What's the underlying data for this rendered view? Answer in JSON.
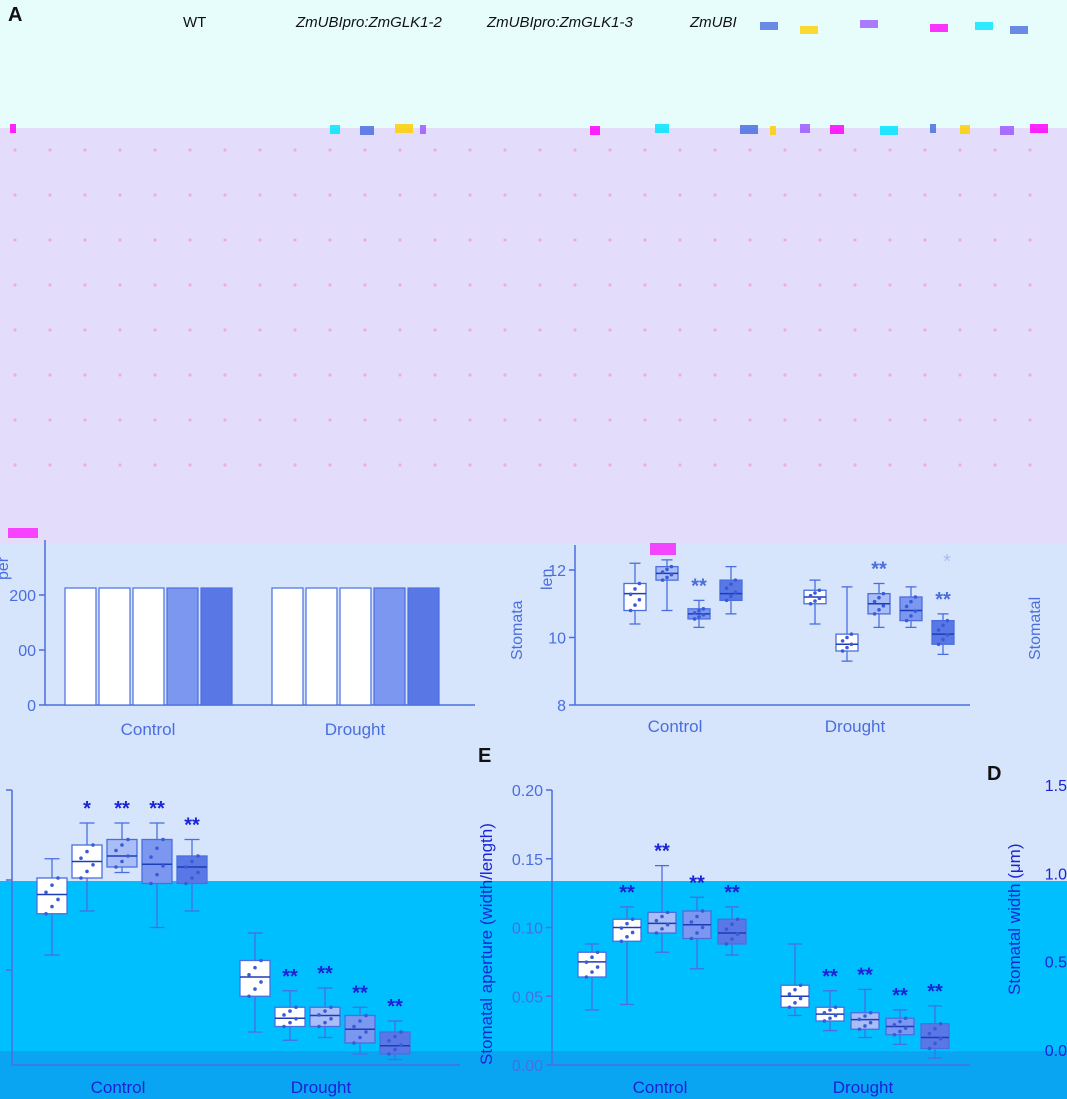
{
  "figure": {
    "panel_letters": {
      "a": "A",
      "e": "E",
      "d": "D"
    },
    "header_labels": [
      "WT",
      "ZmUBIpro:ZmGLK1-2",
      "ZmUBIpro:ZmGLK1-3",
      "ZmUBI"
    ],
    "palette": {
      "outline": "#4a6ee0",
      "fill_light": "#a9bdf7",
      "fill_mid": "#7b97ef",
      "fill_dark": "#5a77e6",
      "magenta": "#ff00ff",
      "sky": "#00bfff",
      "star": "#1a24d6"
    }
  },
  "chart_data": [
    {
      "type": "bar",
      "panel": "top-left",
      "categories": [
        "Control",
        "Drought"
      ],
      "series_count": 5,
      "yticks": [
        "0",
        "00",
        "200"
      ],
      "partial_ylabel": "per"
    },
    {
      "type": "box",
      "panel": "top-middle",
      "categories": [
        "Control",
        "Drought"
      ],
      "ylabel": "Stomata",
      "partial_ylabel": "len",
      "ylim": [
        8,
        12
      ],
      "yticks": [
        "8",
        "10",
        "12"
      ],
      "groups": [
        {
          "category": "Control",
          "boxes": [
            {
              "q1": 10.8,
              "median": 11.3,
              "q3": 11.6,
              "min": 10.4,
              "max": 12.2,
              "star": ""
            },
            {
              "q1": 11.7,
              "median": 11.9,
              "q3": 12.1,
              "min": 10.8,
              "max": 12.3,
              "star": ""
            },
            {
              "q1": 10.55,
              "median": 10.7,
              "q3": 10.85,
              "min": 10.3,
              "max": 11.1,
              "star": "**"
            },
            {
              "q1": 11.1,
              "median": 11.3,
              "q3": 11.7,
              "min": 10.7,
              "max": 12.1,
              "star": ""
            }
          ]
        },
        {
          "category": "Drought",
          "boxes": [
            {
              "q1": 11.0,
              "median": 11.2,
              "q3": 11.4,
              "min": 10.4,
              "max": 11.7,
              "star": ""
            },
            {
              "q1": 9.6,
              "median": 9.8,
              "q3": 10.1,
              "min": 9.3,
              "max": 11.5,
              "star": ""
            },
            {
              "q1": 10.7,
              "median": 11.0,
              "q3": 11.3,
              "min": 10.3,
              "max": 11.6,
              "star": "**"
            },
            {
              "q1": 10.5,
              "median": 10.8,
              "q3": 11.2,
              "min": 10.3,
              "max": 11.5,
              "star": ""
            },
            {
              "q1": 9.8,
              "median": 10.1,
              "q3": 10.5,
              "min": 9.5,
              "max": 10.7,
              "star": "**"
            }
          ]
        }
      ],
      "extra_star": "*"
    },
    {
      "type": "box",
      "panel": "bottom-left",
      "categories": [
        "Control",
        "Drought"
      ],
      "yticks": [],
      "groups": [
        {
          "category": "Control",
          "boxes": [
            {
              "q1": 0.55,
              "median": 0.62,
              "q3": 0.68,
              "min": 0.4,
              "max": 0.75,
              "star": ""
            },
            {
              "q1": 0.68,
              "median": 0.74,
              "q3": 0.8,
              "min": 0.56,
              "max": 0.88,
              "star": "*"
            },
            {
              "q1": 0.72,
              "median": 0.76,
              "q3": 0.82,
              "min": 0.7,
              "max": 0.88,
              "star": "**"
            },
            {
              "q1": 0.66,
              "median": 0.73,
              "q3": 0.82,
              "min": 0.5,
              "max": 0.88,
              "star": "**"
            },
            {
              "q1": 0.66,
              "median": 0.72,
              "q3": 0.76,
              "min": 0.56,
              "max": 0.82,
              "star": "**"
            }
          ]
        },
        {
          "category": "Drought",
          "boxes": [
            {
              "q1": 0.25,
              "median": 0.32,
              "q3": 0.38,
              "min": 0.12,
              "max": 0.48,
              "star": ""
            },
            {
              "q1": 0.14,
              "median": 0.17,
              "q3": 0.21,
              "min": 0.09,
              "max": 0.27,
              "star": "**"
            },
            {
              "q1": 0.14,
              "median": 0.18,
              "q3": 0.21,
              "min": 0.1,
              "max": 0.28,
              "star": "**"
            },
            {
              "q1": 0.08,
              "median": 0.13,
              "q3": 0.18,
              "min": 0.04,
              "max": 0.21,
              "star": "**"
            },
            {
              "q1": 0.04,
              "median": 0.07,
              "q3": 0.12,
              "min": 0.02,
              "max": 0.16,
              "star": "**"
            }
          ]
        }
      ]
    },
    {
      "type": "box",
      "panel": "E",
      "categories": [
        "Control",
        "Drought"
      ],
      "ylabel": "Stomatal aperture (width/length)",
      "ylim": [
        0,
        0.2
      ],
      "yticks": [
        "0.00",
        "0.05",
        "0.10",
        "0.15",
        "0.20"
      ],
      "groups": [
        {
          "category": "Control",
          "boxes": [
            {
              "q1": 0.064,
              "median": 0.075,
              "q3": 0.082,
              "min": 0.04,
              "max": 0.088,
              "star": ""
            },
            {
              "q1": 0.09,
              "median": 0.1,
              "q3": 0.106,
              "min": 0.044,
              "max": 0.115,
              "star": "**"
            },
            {
              "q1": 0.096,
              "median": 0.103,
              "q3": 0.111,
              "min": 0.082,
              "max": 0.145,
              "star": "**"
            },
            {
              "q1": 0.092,
              "median": 0.102,
              "q3": 0.112,
              "min": 0.07,
              "max": 0.122,
              "star": "**"
            },
            {
              "q1": 0.088,
              "median": 0.096,
              "q3": 0.106,
              "min": 0.08,
              "max": 0.115,
              "star": "**"
            }
          ]
        },
        {
          "category": "Drought",
          "boxes": [
            {
              "q1": 0.042,
              "median": 0.05,
              "q3": 0.058,
              "min": 0.036,
              "max": 0.088,
              "star": ""
            },
            {
              "q1": 0.032,
              "median": 0.037,
              "q3": 0.042,
              "min": 0.025,
              "max": 0.054,
              "star": "**"
            },
            {
              "q1": 0.026,
              "median": 0.033,
              "q3": 0.038,
              "min": 0.02,
              "max": 0.055,
              "star": "**"
            },
            {
              "q1": 0.022,
              "median": 0.028,
              "q3": 0.034,
              "min": 0.015,
              "max": 0.04,
              "star": "**"
            },
            {
              "q1": 0.012,
              "median": 0.02,
              "q3": 0.03,
              "min": 0.005,
              "max": 0.043,
              "star": "**"
            }
          ]
        }
      ]
    },
    {
      "type": "box",
      "panel": "D",
      "ylabel": "Stomatal width (μm)",
      "yticks": [
        "0.0",
        "0.5",
        "1.0",
        "1.5"
      ],
      "partial_ylabel": "Stomatal"
    }
  ]
}
